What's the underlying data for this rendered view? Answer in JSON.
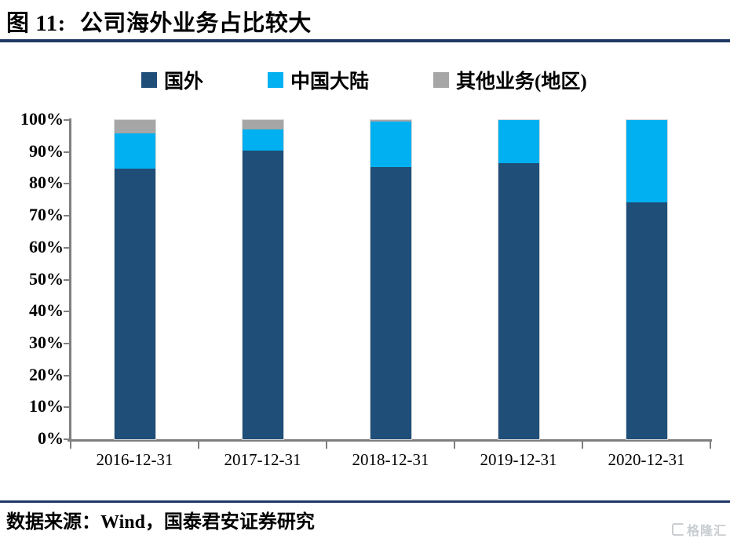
{
  "header": {
    "figure_label": "图 11:",
    "title": "公司海外业务占比较大"
  },
  "legend": [
    {
      "label": "国外",
      "color": "#1F4E79"
    },
    {
      "label": "中国大陆",
      "color": "#00B0F0"
    },
    {
      "label": "其他业务(地区)",
      "color": "#A6A6A6"
    }
  ],
  "chart_data": {
    "type": "bar",
    "stacked": true,
    "stacked_100_percent": true,
    "title": "公司海外业务占比较大",
    "categories": [
      "2016-12-31",
      "2017-12-31",
      "2018-12-31",
      "2019-12-31",
      "2020-12-31"
    ],
    "series": [
      {
        "name": "国外",
        "color": "#1F4E79",
        "values": [
          84.7,
          90.4,
          85.2,
          86.5,
          74.2
        ]
      },
      {
        "name": "中国大陆",
        "color": "#00B0F0",
        "values": [
          11.1,
          6.6,
          14.3,
          13.5,
          25.8
        ]
      },
      {
        "name": "其他业务(地区)",
        "color": "#A6A6A6",
        "values": [
          4.2,
          3.0,
          0.5,
          0.0,
          0.0
        ]
      }
    ],
    "xlabel": "",
    "ylabel": "",
    "ylim": [
      0,
      100
    ],
    "ytick_step": 10,
    "ytick_labels": [
      "0%",
      "10%",
      "20%",
      "30%",
      "40%",
      "50%",
      "60%",
      "70%",
      "80%",
      "90%",
      "100%"
    ],
    "grid": false,
    "legend_position": "top",
    "bar_border_color": "#D9D9D9",
    "axis_color": "#7F7F7F"
  },
  "footer": {
    "source": "数据来源：Wind，国泰君安证券研究",
    "watermark": "格隆汇"
  }
}
